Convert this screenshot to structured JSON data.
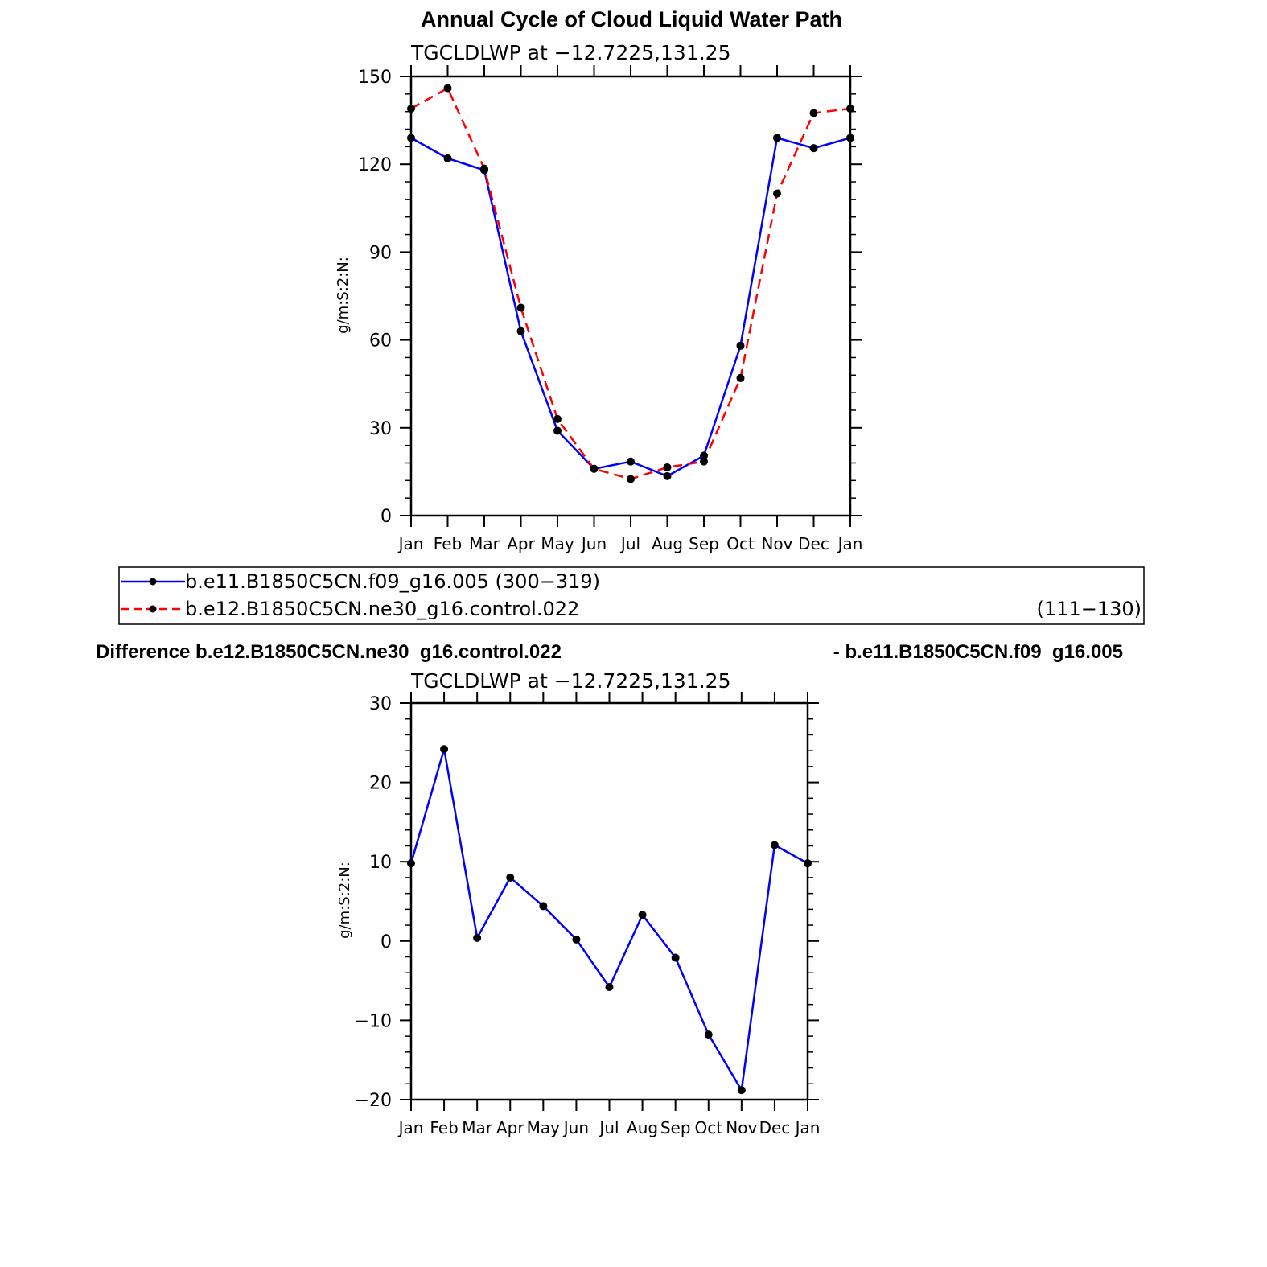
{
  "colors": {
    "series_a": "#0000ff",
    "series_b": "#ff0000",
    "marker": "#000000",
    "axes": "#000000"
  },
  "difference_header": {
    "left": "Difference b.e12.B1850C5CN.ne30_g16.control.022",
    "right": "- b.e11.B1850C5CN.f09_g16.005"
  },
  "legend": {
    "placement": "below-top-panel",
    "entries": [
      {
        "label": "b.e11.B1850C5CN.f09_g16.005 (300−319)",
        "years": "",
        "color": "#0000ff",
        "dash": "solid"
      },
      {
        "label": "b.e12.B1850C5CN.ne30_g16.control.022",
        "years": "(111−130)",
        "color": "#ff0000",
        "dash": "dashed"
      }
    ]
  },
  "chart_data": [
    {
      "type": "line",
      "title": "Annual Cycle of Cloud Liquid Water Path",
      "subtitle": "TGCLDLWP  at  −12.7225,131.25",
      "xlabel": "",
      "ylabel": "g/m:S:2:N:",
      "categories": [
        "Jan",
        "Feb",
        "Mar",
        "Apr",
        "May",
        "Jun",
        "Jul",
        "Aug",
        "Sep",
        "Oct",
        "Nov",
        "Dec",
        "Jan"
      ],
      "ylim": [
        0,
        150
      ],
      "yticks": [
        0,
        30,
        60,
        90,
        120,
        150
      ],
      "ytick_labels": [
        "0",
        "30",
        "60",
        "90",
        "120",
        "150"
      ],
      "grid": false,
      "series": [
        {
          "name": "b.e11.B1850C5CN.f09_g16.005 (300−319)",
          "color": "#0000ff",
          "dash": "solid",
          "values": [
            129,
            122,
            118,
            63,
            29,
            16,
            18.5,
            13.5,
            20.5,
            58,
            129,
            125.5,
            129
          ]
        },
        {
          "name": "b.e12.B1850C5CN.ne30_g16.control.022 (111−130)",
          "color": "#ff0000",
          "dash": "dashed",
          "values": [
            139,
            146,
            118.5,
            71,
            33,
            16,
            12.5,
            16.5,
            18.5,
            47,
            110,
            137.5,
            139
          ]
        }
      ]
    },
    {
      "type": "line",
      "title": "",
      "subtitle": "TGCLDLWP  at  −12.7225,131.25",
      "xlabel": "",
      "ylabel": "g/m:S:2:N:",
      "categories": [
        "Jan",
        "Feb",
        "Mar",
        "Apr",
        "May",
        "Jun",
        "Jul",
        "Aug",
        "Sep",
        "Oct",
        "Nov",
        "Dec",
        "Jan"
      ],
      "ylim": [
        -20,
        30
      ],
      "yticks": [
        -20,
        -10,
        0,
        10,
        20,
        30
      ],
      "ytick_labels": [
        "−20",
        "−10",
        "0",
        "10",
        "20",
        "30"
      ],
      "grid": false,
      "series": [
        {
          "name": "",
          "color": "#0000ff",
          "dash": "solid",
          "values": [
            9.8,
            24.2,
            0.4,
            8,
            4.4,
            0.2,
            -5.8,
            3.3,
            -2.1,
            -11.8,
            -18.8,
            12.1,
            9.8
          ]
        }
      ]
    }
  ]
}
